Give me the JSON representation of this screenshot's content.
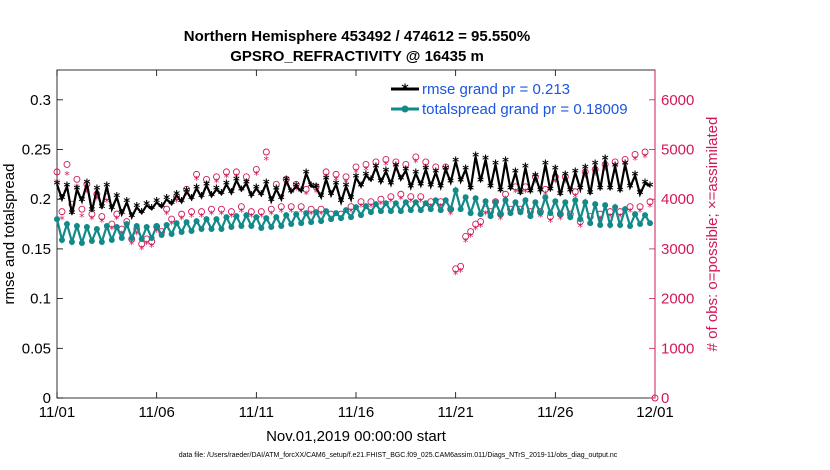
{
  "chart_data": {
    "type": "line",
    "title": "Northern Hemisphere 453492 / 474612 = 95.550%",
    "subtitle": "GPSRO_REFRACTIVITY @ 16435 m",
    "xlabel": "Nov.01,2019 00:00:00 start",
    "ylabel_left": "rmse and totalspread",
    "ylabel_right": "# of obs: o=possible; ×=assimilated",
    "footnote": "data file: /Users/raeder/DAI/ATM_forcXX/CAM6_setup/f.e21.FHIST_BGC.f09_025.CAM6assim.011/Diags_NTrS_2019-11/obs_diag_output.nc",
    "xlim": [
      0,
      30
    ],
    "ylim_left": [
      0,
      0.33
    ],
    "ylim_right": [
      0,
      6600
    ],
    "x_ticks": [
      0,
      5,
      10,
      15,
      20,
      25,
      30
    ],
    "x_tick_labels": [
      "11/01",
      "11/06",
      "11/11",
      "11/16",
      "11/21",
      "11/26",
      "12/01"
    ],
    "y_left_ticks": [
      0,
      0.05,
      0.1,
      0.15,
      0.2,
      0.25,
      0.3
    ],
    "y_left_tick_labels": [
      "0",
      "0.05",
      "0.1",
      "0.15",
      "0.2",
      "0.25",
      "0.3"
    ],
    "y_right_ticks": [
      0,
      1000,
      2000,
      3000,
      4000,
      5000,
      6000
    ],
    "y_right_tick_labels": [
      "0",
      "1000",
      "2000",
      "3000",
      "4000",
      "5000",
      "6000"
    ],
    "legend_position": "top-right",
    "colors": {
      "rmse": "#000000",
      "totalspread": "#138a8a",
      "obs": "#d1195a",
      "legend_text": "#1a55e3",
      "right_axis": "#d1195a"
    },
    "series": [
      {
        "name": "rmse grand pr = 0.213",
        "x": [
          0,
          0.25,
          0.5,
          0.75,
          1,
          1.25,
          1.5,
          1.75,
          2,
          2.25,
          2.5,
          2.75,
          3,
          3.25,
          3.5,
          3.75,
          4,
          4.25,
          4.5,
          4.75,
          5,
          5.25,
          5.5,
          5.75,
          6,
          6.25,
          6.5,
          6.75,
          7,
          7.25,
          7.5,
          7.75,
          8,
          8.25,
          8.5,
          8.75,
          9,
          9.25,
          9.5,
          9.75,
          10,
          10.25,
          10.5,
          10.75,
          11,
          11.25,
          11.5,
          11.75,
          12,
          12.25,
          12.5,
          12.75,
          13,
          13.25,
          13.5,
          13.75,
          14,
          14.25,
          14.5,
          14.75,
          15,
          15.25,
          15.5,
          15.75,
          16,
          16.25,
          16.5,
          16.75,
          17,
          17.25,
          17.5,
          17.75,
          18,
          18.25,
          18.5,
          18.75,
          19,
          19.25,
          19.5,
          19.75,
          20,
          20.25,
          20.5,
          20.75,
          21,
          21.25,
          21.5,
          21.75,
          22,
          22.25,
          22.5,
          22.75,
          23,
          23.25,
          23.5,
          23.75,
          24,
          24.25,
          24.5,
          24.75,
          25,
          25.25,
          25.5,
          25.75,
          26,
          26.25,
          26.5,
          26.75,
          27,
          27.25,
          27.5,
          27.75,
          28,
          28.25,
          28.5,
          28.75,
          29,
          29.25,
          29.5,
          29.75
        ],
        "values": [
          0.215,
          0.2,
          0.213,
          0.185,
          0.21,
          0.198,
          0.216,
          0.188,
          0.21,
          0.191,
          0.213,
          0.19,
          0.202,
          0.185,
          0.197,
          0.182,
          0.192,
          0.186,
          0.194,
          0.19,
          0.197,
          0.192,
          0.2,
          0.195,
          0.204,
          0.197,
          0.208,
          0.2,
          0.211,
          0.202,
          0.214,
          0.203,
          0.21,
          0.205,
          0.215,
          0.206,
          0.219,
          0.209,
          0.216,
          0.203,
          0.211,
          0.204,
          0.216,
          0.198,
          0.21,
          0.2,
          0.219,
          0.207,
          0.213,
          0.208,
          0.226,
          0.213,
          0.212,
          0.202,
          0.22,
          0.204,
          0.215,
          0.197,
          0.213,
          0.2,
          0.222,
          0.213,
          0.224,
          0.219,
          0.232,
          0.217,
          0.228,
          0.215,
          0.233,
          0.22,
          0.229,
          0.212,
          0.226,
          0.214,
          0.23,
          0.213,
          0.227,
          0.212,
          0.23,
          0.217,
          0.238,
          0.218,
          0.23,
          0.21,
          0.243,
          0.218,
          0.24,
          0.212,
          0.235,
          0.208,
          0.238,
          0.21,
          0.227,
          0.205,
          0.232,
          0.207,
          0.223,
          0.208,
          0.235,
          0.209,
          0.23,
          0.204,
          0.224,
          0.208,
          0.227,
          0.21,
          0.231,
          0.205,
          0.235,
          0.21,
          0.24,
          0.21,
          0.233,
          0.208,
          0.235,
          0.212,
          0.224,
          0.205,
          0.216,
          0.213
        ]
      },
      {
        "name": "totalspread grand pr = 0.18009",
        "x": [
          0,
          0.25,
          0.5,
          0.75,
          1,
          1.25,
          1.5,
          1.75,
          2,
          2.25,
          2.5,
          2.75,
          3,
          3.25,
          3.5,
          3.75,
          4,
          4.25,
          4.5,
          4.75,
          5,
          5.25,
          5.5,
          5.75,
          6,
          6.25,
          6.5,
          6.75,
          7,
          7.25,
          7.5,
          7.75,
          8,
          8.25,
          8.5,
          8.75,
          9,
          9.25,
          9.5,
          9.75,
          10,
          10.25,
          10.5,
          10.75,
          11,
          11.25,
          11.5,
          11.75,
          12,
          12.25,
          12.5,
          12.75,
          13,
          13.25,
          13.5,
          13.75,
          14,
          14.25,
          14.5,
          14.75,
          15,
          15.25,
          15.5,
          15.75,
          16,
          16.25,
          16.5,
          16.75,
          17,
          17.25,
          17.5,
          17.75,
          18,
          18.25,
          18.5,
          18.75,
          19,
          19.25,
          19.5,
          19.75,
          20,
          20.25,
          20.5,
          20.75,
          21,
          21.25,
          21.5,
          21.75,
          22,
          22.25,
          22.5,
          22.75,
          23,
          23.25,
          23.5,
          23.75,
          24,
          24.25,
          24.5,
          24.75,
          25,
          25.25,
          25.5,
          25.75,
          26,
          26.25,
          26.5,
          26.75,
          27,
          27.25,
          27.5,
          27.75,
          28,
          28.25,
          28.5,
          28.75,
          29,
          29.25,
          29.5,
          29.75
        ],
        "values": [
          0.18,
          0.159,
          0.175,
          0.157,
          0.173,
          0.156,
          0.172,
          0.158,
          0.17,
          0.157,
          0.173,
          0.159,
          0.172,
          0.161,
          0.175,
          0.161,
          0.173,
          0.16,
          0.172,
          0.161,
          0.173,
          0.164,
          0.174,
          0.165,
          0.176,
          0.167,
          0.177,
          0.168,
          0.178,
          0.17,
          0.18,
          0.17,
          0.18,
          0.17,
          0.182,
          0.172,
          0.183,
          0.173,
          0.184,
          0.173,
          0.182,
          0.171,
          0.181,
          0.172,
          0.182,
          0.173,
          0.184,
          0.175,
          0.185,
          0.176,
          0.186,
          0.177,
          0.187,
          0.178,
          0.188,
          0.18,
          0.186,
          0.181,
          0.189,
          0.182,
          0.192,
          0.184,
          0.193,
          0.187,
          0.195,
          0.188,
          0.196,
          0.188,
          0.196,
          0.188,
          0.197,
          0.189,
          0.197,
          0.189,
          0.196,
          0.19,
          0.199,
          0.189,
          0.199,
          0.19,
          0.209,
          0.19,
          0.202,
          0.186,
          0.201,
          0.185,
          0.198,
          0.183,
          0.197,
          0.185,
          0.199,
          0.186,
          0.197,
          0.187,
          0.199,
          0.183,
          0.197,
          0.186,
          0.202,
          0.186,
          0.198,
          0.185,
          0.197,
          0.182,
          0.199,
          0.18,
          0.197,
          0.176,
          0.195,
          0.174,
          0.194,
          0.174,
          0.192,
          0.174,
          0.19,
          0.173,
          0.185,
          0.175,
          0.184,
          0.176
        ]
      }
    ],
    "obs_possible": {
      "x": [
        0,
        0.25,
        0.5,
        0.75,
        1,
        1.25,
        1.5,
        1.75,
        2,
        2.25,
        2.5,
        2.75,
        3,
        3.25,
        3.5,
        3.75,
        4,
        4.25,
        4.5,
        4.75,
        5,
        5.25,
        5.5,
        5.75,
        6,
        6.25,
        6.5,
        6.75,
        7,
        7.25,
        7.5,
        7.75,
        8,
        8.25,
        8.5,
        8.75,
        9,
        9.25,
        9.5,
        9.75,
        10,
        10.25,
        10.5,
        10.75,
        11,
        11.25,
        11.5,
        11.75,
        12,
        12.25,
        12.5,
        12.75,
        13,
        13.25,
        13.5,
        13.75,
        14,
        14.25,
        14.5,
        14.75,
        15,
        15.25,
        15.5,
        15.75,
        16,
        16.25,
        16.5,
        16.75,
        17,
        17.25,
        17.5,
        17.75,
        18,
        18.25,
        18.5,
        18.75,
        19,
        19.25,
        19.5,
        19.75,
        20,
        20.25,
        20.5,
        20.75,
        21,
        21.25,
        21.5,
        21.75,
        22,
        22.25,
        22.5,
        22.75,
        23,
        23.25,
        23.5,
        23.75,
        24,
        24.25,
        24.5,
        24.75,
        25,
        25.25,
        25.5,
        25.75,
        26,
        26.25,
        26.5,
        26.75,
        27,
        27.25,
        27.5,
        27.75,
        28,
        28.25,
        28.5,
        28.75,
        29,
        29.25,
        29.5,
        29.75
      ],
      "values": [
        4550,
        3750,
        4700,
        3900,
        4400,
        3800,
        4300,
        3700,
        4100,
        3650,
        4050,
        3500,
        3700,
        3400,
        3550,
        3200,
        3400,
        3100,
        3200,
        3150,
        3450,
        3350,
        3800,
        3600,
        4050,
        3700,
        4200,
        3750,
        4500,
        3750,
        4400,
        3800,
        4450,
        3800,
        4550,
        3750,
        4550,
        3850,
        4450,
        3750,
        4600,
        3750,
        4950,
        3800,
        4300,
        3850,
        4400,
        3850,
        4300,
        3850,
        4200,
        3800,
        4250,
        3800,
        4550,
        3700,
        4500,
        3700,
        4450,
        3850,
        4650,
        3950,
        4700,
        3950,
        4750,
        4000,
        4800,
        4050,
        4750,
        4100,
        4700,
        4050,
        4850,
        4050,
        4750,
        3950,
        4650,
        3950,
        4650,
        3800,
        2600,
        2650,
        3250,
        3350,
        3500,
        3550,
        3800,
        3750,
        3950,
        3700,
        4100,
        3800,
        4250,
        3800,
        4250,
        3750,
        4450,
        3750,
        4200,
        3650,
        4450,
        3700,
        4450,
        3700,
        4150,
        3550,
        4550,
        3650,
        4600,
        3700,
        4700,
        3750,
        4750,
        3750,
        4800,
        3850,
        4900,
        3850,
        4950,
        3950
      ]
    },
    "obs_assimilated": {
      "x": [
        0,
        0.25,
        0.5,
        0.75,
        1,
        1.25,
        1.5,
        1.75,
        2,
        2.25,
        2.5,
        2.75,
        3,
        3.25,
        3.5,
        3.75,
        4,
        4.25,
        4.5,
        4.75,
        5,
        5.25,
        5.5,
        5.75,
        6,
        6.25,
        6.5,
        6.75,
        7,
        7.25,
        7.5,
        7.75,
        8,
        8.25,
        8.5,
        8.75,
        9,
        9.25,
        9.5,
        9.75,
        10,
        10.25,
        10.5,
        10.75,
        11,
        11.25,
        11.5,
        11.75,
        12,
        12.25,
        12.5,
        12.75,
        13,
        13.25,
        13.5,
        13.75,
        14,
        14.25,
        14.5,
        14.75,
        15,
        15.25,
        15.5,
        15.75,
        16,
        16.25,
        16.5,
        16.75,
        17,
        17.25,
        17.5,
        17.75,
        18,
        18.25,
        18.5,
        18.75,
        19,
        19.25,
        19.5,
        19.75,
        20,
        20.25,
        20.5,
        20.75,
        21,
        21.25,
        21.5,
        21.75,
        22,
        22.25,
        22.5,
        22.75,
        23,
        23.25,
        23.5,
        23.75,
        24,
        24.25,
        24.5,
        24.75,
        25,
        25.25,
        25.5,
        25.75,
        26,
        26.25,
        26.5,
        26.75,
        27,
        27.25,
        27.5,
        27.75,
        28,
        28.25,
        28.5,
        28.75,
        29,
        29.25,
        29.5,
        29.75
      ],
      "values": [
        4350,
        3600,
        4500,
        3750,
        4250,
        3650,
        4150,
        3600,
        4000,
        3550,
        3950,
        3400,
        3600,
        3300,
        3450,
        3100,
        3300,
        3000,
        3100,
        3050,
        3350,
        3250,
        3700,
        3500,
        3950,
        3600,
        4100,
        3650,
        4400,
        3650,
        4300,
        3700,
        4350,
        3700,
        4450,
        3650,
        4450,
        3750,
        4350,
        3650,
        4500,
        3650,
        4800,
        3700,
        4200,
        3750,
        4300,
        3750,
        4200,
        3750,
        4100,
        3700,
        4150,
        3700,
        4450,
        3600,
        4400,
        3600,
        4350,
        3750,
        4550,
        3850,
        4600,
        3850,
        4650,
        3900,
        4700,
        3950,
        4650,
        4000,
        4600,
        3950,
        4750,
        3950,
        4650,
        3850,
        4550,
        3850,
        4550,
        3700,
        2500,
        2550,
        3150,
        3250,
        3400,
        3450,
        3700,
        3650,
        3850,
        3600,
        4000,
        3700,
        4150,
        3700,
        4150,
        3650,
        4350,
        3650,
        4100,
        3550,
        4350,
        3600,
        4350,
        3600,
        4050,
        3450,
        4450,
        3550,
        4500,
        3600,
        4600,
        3650,
        4650,
        3650,
        4700,
        3750,
        4800,
        3750,
        4850,
        3850
      ]
    }
  }
}
